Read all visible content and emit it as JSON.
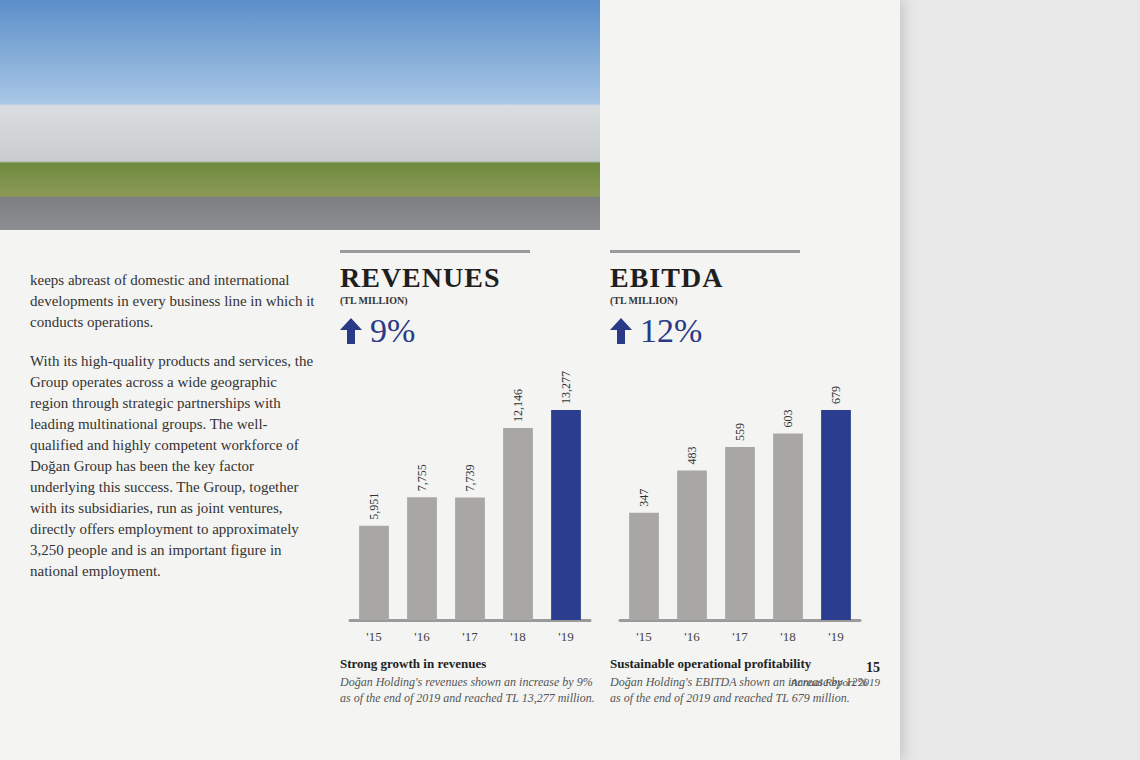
{
  "chart_data": [
    {
      "type": "bar",
      "title": "REVENUES",
      "subtitle": "(TL MILLION)",
      "annotations": [
        "9%",
        "Strong growth in revenues",
        "Doğan Holding's revenues shown an increase by 9% as of the end of 2019 and reached TL 13,277 million."
      ],
      "categories": [
        "'15",
        "'16",
        "'17",
        "'18",
        "'19"
      ],
      "values": [
        5951,
        7755,
        7739,
        12146,
        13277
      ],
      "value_labels": [
        "5,951",
        "7,755",
        "7,739",
        "12,146",
        "13,277"
      ],
      "colors": [
        "#a9a7a5",
        "#a9a7a5",
        "#a9a7a5",
        "#a9a7a5",
        "#2b3d8f"
      ],
      "ylim": [
        0,
        13277
      ],
      "grid": false,
      "tick_labels": "x",
      "data_labels": true
    },
    {
      "type": "bar",
      "title": "EBITDA",
      "subtitle": "(TL MILLION)",
      "annotations": [
        "12%",
        "Sustainable operational profitability",
        "Doğan Holding's EBITDA shown an increase by 12% as of the end of 2019 and reached TL 679 million."
      ],
      "categories": [
        "'15",
        "'16",
        "'17",
        "'18",
        "'19"
      ],
      "values": [
        347,
        483,
        559,
        603,
        679
      ],
      "colors": [
        "#a9a7a5",
        "#a9a7a5",
        "#a9a7a5",
        "#a9a7a5",
        "#2b3d8f"
      ],
      "ylim": [
        0,
        679
      ],
      "grid": false,
      "tick_labels": "x",
      "data_labels": true
    }
  ],
  "page": {
    "body": [
      "keeps abreast of domestic and international developments in every business line in which it conducts operations.",
      "With its high-quality products and services, the Group operates across a wide geographic region through strategic partnerships with leading multinational groups. The well-qualified and highly competent workforce of Doğan Group has been the key factor underlying this success. The Group, together with its subsidiaries, run as joint ventures, directly offers employment to approximately 3,250 people and is an important figure in national employment."
    ],
    "page_number": "15",
    "footer": "Annual Report 2019"
  }
}
